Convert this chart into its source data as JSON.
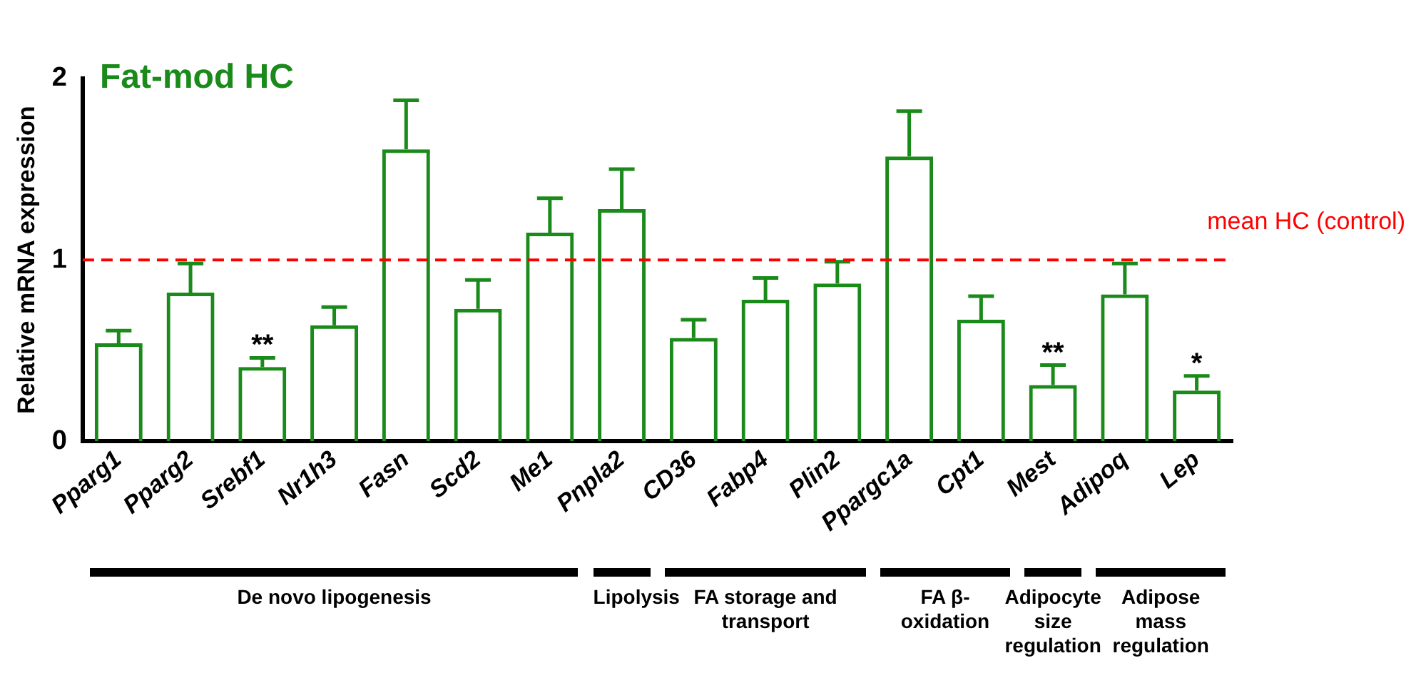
{
  "chart_data": {
    "type": "bar",
    "title": "Fat-mod HC",
    "ylabel": "Relative mRNA expression",
    "categories": [
      "Pparg1",
      "Pparg2",
      "Srebf1",
      "Nr1h3",
      "Fasn",
      "Scd2",
      "Me1",
      "Pnpla2",
      "CD36",
      "Fabp4",
      "Plin2",
      "Ppargc1a",
      "Cpt1",
      "Mest",
      "Adipoq",
      "Lep"
    ],
    "values": [
      0.54,
      0.82,
      0.41,
      0.64,
      1.61,
      0.73,
      1.15,
      1.28,
      0.57,
      0.78,
      0.87,
      1.57,
      0.67,
      0.31,
      0.81,
      0.28
    ],
    "errors": [
      [
        0.54,
        0.61
      ],
      [
        0.82,
        0.98
      ],
      [
        0.41,
        0.46
      ],
      [
        0.64,
        0.74
      ],
      [
        1.61,
        1.88
      ],
      [
        0.73,
        0.89
      ],
      [
        1.15,
        1.34
      ],
      [
        1.28,
        1.5
      ],
      [
        0.57,
        0.67
      ],
      [
        0.78,
        0.9
      ],
      [
        0.87,
        0.99
      ],
      [
        1.57,
        1.82
      ],
      [
        0.67,
        0.8
      ],
      [
        0.31,
        0.42
      ],
      [
        0.81,
        0.98
      ],
      [
        0.28,
        0.36
      ]
    ],
    "color": "#1a8a1a",
    "ylim": [
      0,
      2
    ],
    "yticks": [
      0,
      1,
      2
    ],
    "grid": false,
    "legend": false,
    "ref_lines": [
      {
        "axis": "y",
        "value": 1,
        "label": "mean HC (control)",
        "color": "#ff0000",
        "line_style": "dashed"
      }
    ],
    "annotations": [
      {
        "text": "**",
        "x": "Srebf1",
        "y": 0.46
      },
      {
        "text": "**",
        "x": "Mest",
        "y": 0.42
      },
      {
        "text": "*",
        "x": "Lep",
        "y": 0.36
      },
      "De novo lipogenesis",
      "Lipolysis",
      "FA storage and transport",
      "FA β-oxidation",
      "Adipocyte size regulation",
      "Adipose mass regulation"
    ]
  }
}
